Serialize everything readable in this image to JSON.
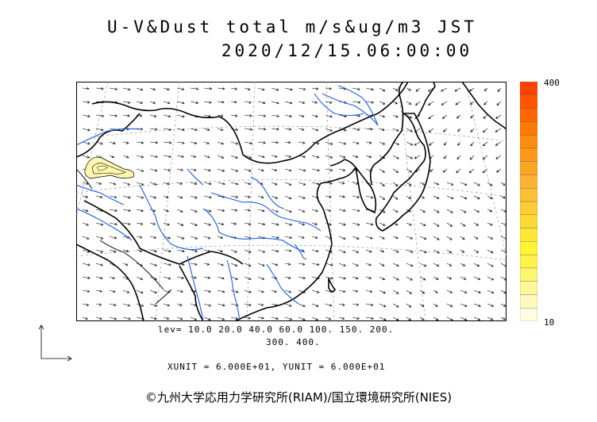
{
  "title": "U-V&Dust total m/s&ug/m3 JST",
  "datetime": "2020/12/15.06:00:00",
  "legend": {
    "max_label": "400",
    "min_label": "10"
  },
  "levels_line1": "lev= 10.0 20.0 40.0 60.0 100. 150. 200.",
  "levels_line2": "300. 400.",
  "units_line": "XUNIT = 6.000E+01, YUNIT = 6.000E+01",
  "copyright": "©九州大学応用力学研究所(RIAM)/国立環境研究所(NIES)",
  "colors": {
    "coast": "#000000",
    "river": "#1a5ee6",
    "scale": [
      "#fffde0",
      "#fff9c0",
      "#fff79a",
      "#fff570",
      "#fff248",
      "#fff533",
      "#ffe833",
      "#ffd933",
      "#ffcc33",
      "#ffbf33",
      "#ffb233",
      "#ffa526",
      "#ff9919",
      "#ff8c0d",
      "#ff7a00",
      "#ff6600",
      "#ff5500",
      "#ff4400"
    ]
  },
  "wind_field": {
    "regions": [
      {
        "name": "north-west",
        "u": 1.0,
        "v": -0.35
      },
      {
        "name": "central",
        "u": 1.0,
        "v": -0.5
      },
      {
        "name": "east",
        "u": 0.9,
        "v": -0.8
      },
      {
        "name": "pacific",
        "u": -0.6,
        "v": -0.8
      }
    ]
  },
  "dust_plume": {
    "location": "north-west interior",
    "peak_level": "10"
  }
}
